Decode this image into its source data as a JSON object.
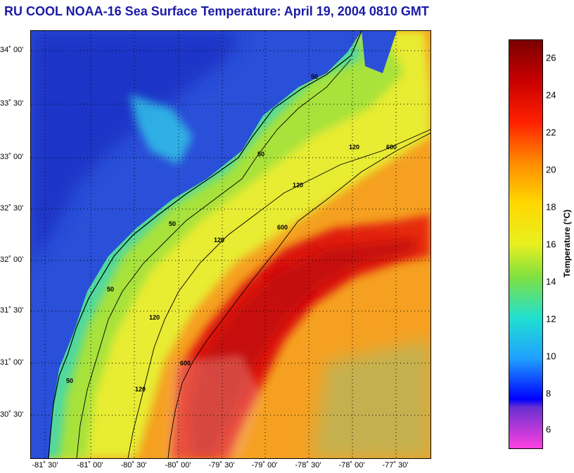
{
  "header": {
    "title": "RU COOL  NOAA-16  Sea Surface Temperature:  April 19, 2004 0810 GMT"
  },
  "map": {
    "lat_labels": [
      "34˚ 00'",
      "33˚ 30'",
      "33˚ 00'",
      "32˚ 30'",
      "32˚ 00'",
      "31˚ 30'",
      "31˚ 00'",
      "30˚ 30'"
    ],
    "lon_labels": [
      "-81˚ 30'",
      "-81˚ 00'",
      "-80˚ 30'",
      "-80˚ 00'",
      "-79˚ 30'",
      "-79˚ 00'",
      "-78˚ 30'",
      "-78˚ 00'",
      "-77˚ 30'"
    ],
    "contour_labels": [
      "50",
      "120",
      "600"
    ],
    "colors": {
      "land": "#2a4fd8",
      "shelf": "#a8e23a",
      "gulf_stream": "#e01010",
      "offshore": "#f5a020"
    }
  },
  "colorbar": {
    "title": "Temperature (°C)",
    "ticks": [
      "26",
      "24",
      "22",
      "20",
      "18",
      "16",
      "14",
      "12",
      "10",
      "8",
      "6"
    ],
    "range": [
      5,
      27
    ]
  }
}
